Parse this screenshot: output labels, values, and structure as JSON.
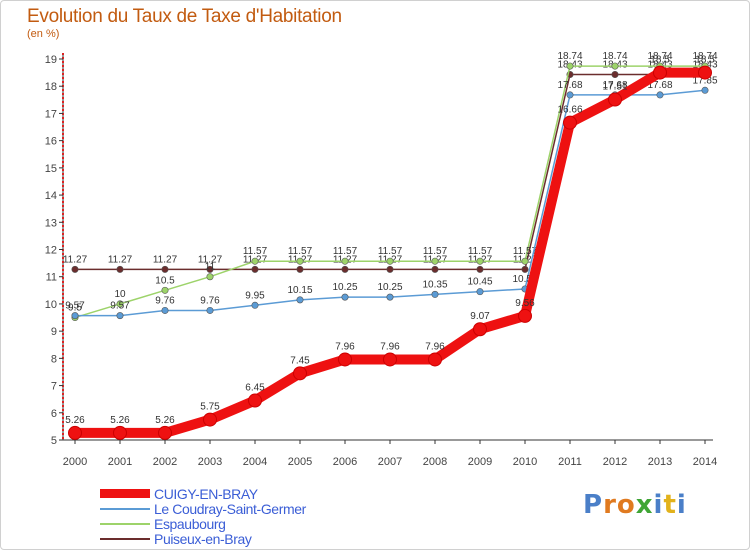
{
  "title": "Evolution du Taux de Taxe d'Habitation",
  "unit_label": "(en %)",
  "logo_text": "Proxiti",
  "chart_data": {
    "type": "line",
    "title": "Evolution du Taux de Taxe d'Habitation",
    "ylabel": "(en %)",
    "x": [
      "2000",
      "2001",
      "2002",
      "2003",
      "2004",
      "2005",
      "2006",
      "2007",
      "2008",
      "2009",
      "2010",
      "2011",
      "2012",
      "2013",
      "2014"
    ],
    "ylim": [
      5,
      19
    ],
    "yticks": [
      5,
      6,
      7,
      8,
      9,
      10,
      11,
      12,
      13,
      14,
      15,
      16,
      17,
      18,
      19
    ],
    "grid": false,
    "series": [
      {
        "name": "Puiseux-en-Bray",
        "color": "#6b2d2d",
        "values": [
          11.27,
          11.27,
          11.27,
          11.27,
          11.27,
          11.27,
          11.27,
          11.27,
          11.27,
          11.27,
          11.27,
          18.43,
          18.43,
          18.43,
          18.43
        ],
        "labels": [
          "11.27",
          "11.27",
          "11.27",
          "11.27",
          "11.27",
          "11.27",
          "11.27",
          "11.27",
          "11.27",
          "11.27",
          "11.27",
          "18.43",
          "18.43",
          "18.43",
          "18.43"
        ]
      },
      {
        "name": "Espaubourg",
        "color": "#9dd36a",
        "values": [
          9.5,
          10,
          10.5,
          11,
          11.57,
          11.57,
          11.57,
          11.57,
          11.57,
          11.57,
          11.57,
          18.74,
          18.74,
          18.74,
          18.74
        ],
        "labels": [
          "9.5",
          "10",
          "10.5",
          "11",
          "11.57",
          "11.57",
          "11.57",
          "11.57",
          "11.57",
          "11.57",
          "11.57",
          "18.74",
          "18.74",
          "18.74",
          "18.74"
        ]
      },
      {
        "name": "Le Coudray-Saint-Germer",
        "color": "#5b9bd5",
        "values": [
          9.57,
          9.57,
          9.76,
          9.76,
          9.95,
          10.15,
          10.25,
          10.25,
          10.35,
          10.45,
          10.55,
          17.68,
          17.68,
          17.68,
          17.85
        ],
        "labels": [
          "9.57",
          "9.57",
          "9.76",
          "9.76",
          "9.95",
          "10.15",
          "10.25",
          "10.25",
          "10.35",
          "10.45",
          "10.55",
          "17.68",
          "17.68",
          "17.68",
          "17.85"
        ]
      },
      {
        "name": "CUIGY-EN-BRAY",
        "color": "#ee1111",
        "values": [
          5.26,
          5.26,
          5.26,
          5.75,
          6.45,
          7.45,
          7.96,
          7.96,
          7.96,
          9.07,
          9.56,
          16.66,
          17.51,
          18.5,
          18.5
        ],
        "labels": [
          "5.26",
          "5.26",
          "5.26",
          "5.75",
          "6.45",
          "7.45",
          "7.96",
          "7.96",
          "7.96",
          "9.07",
          "9.56",
          "16.66",
          "17.51",
          "18.5",
          "18.5"
        ]
      }
    ],
    "legend": [
      "CUIGY-EN-BRAY",
      "Le Coudray-Saint-Germer",
      "Espaubourg",
      "Puiseux-en-Bray"
    ]
  }
}
